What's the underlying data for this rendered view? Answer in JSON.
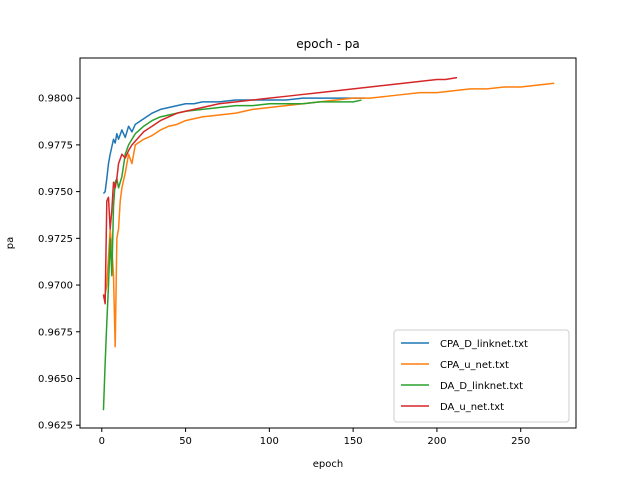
{
  "chart_data": {
    "type": "line",
    "title": "epoch - pa",
    "xlabel": "epoch",
    "ylabel": "pa",
    "xlim": [
      -13,
      283
    ],
    "ylim": [
      0.96235,
      0.98215
    ],
    "xticks": [
      0,
      50,
      100,
      150,
      200,
      250
    ],
    "yticks": [
      0.9625,
      0.965,
      0.9675,
      0.97,
      0.9725,
      0.975,
      0.9775,
      0.98
    ],
    "ytick_labels": [
      "0.9625",
      "0.9650",
      "0.9675",
      "0.9700",
      "0.9725",
      "0.9750",
      "0.9775",
      "0.9800"
    ],
    "grid": false,
    "legend_position": "lower-right",
    "series": [
      {
        "name": "CPA_D_linknet.txt",
        "color": "#1f77b4",
        "points": [
          [
            1,
            0.9749
          ],
          [
            2,
            0.975
          ],
          [
            3,
            0.9757
          ],
          [
            4,
            0.9765
          ],
          [
            5,
            0.977
          ],
          [
            6,
            0.9774
          ],
          [
            7,
            0.9778
          ],
          [
            8,
            0.9776
          ],
          [
            9,
            0.9781
          ],
          [
            10,
            0.9778
          ],
          [
            12,
            0.9783
          ],
          [
            14,
            0.9779
          ],
          [
            16,
            0.9785
          ],
          [
            18,
            0.9782
          ],
          [
            20,
            0.9786
          ],
          [
            25,
            0.9789
          ],
          [
            30,
            0.9792
          ],
          [
            35,
            0.9794
          ],
          [
            40,
            0.9795
          ],
          [
            45,
            0.9796
          ],
          [
            50,
            0.9797
          ],
          [
            55,
            0.9797
          ],
          [
            60,
            0.9798
          ],
          [
            70,
            0.9798
          ],
          [
            80,
            0.9799
          ],
          [
            90,
            0.9799
          ],
          [
            100,
            0.9799
          ],
          [
            110,
            0.9799
          ],
          [
            120,
            0.98
          ],
          [
            130,
            0.98
          ],
          [
            140,
            0.98
          ],
          [
            150,
            0.98
          ],
          [
            157,
            0.98
          ]
        ]
      },
      {
        "name": "CPA_u_net.txt",
        "color": "#ff7f0e",
        "points": [
          [
            1,
            0.9693
          ],
          [
            2,
            0.9695
          ],
          [
            3,
            0.97
          ],
          [
            4,
            0.9715
          ],
          [
            5,
            0.973
          ],
          [
            6,
            0.972
          ],
          [
            7,
            0.9705
          ],
          [
            8,
            0.9667
          ],
          [
            9,
            0.9725
          ],
          [
            10,
            0.973
          ],
          [
            11,
            0.9745
          ],
          [
            12,
            0.9752
          ],
          [
            14,
            0.976
          ],
          [
            16,
            0.977
          ],
          [
            18,
            0.9765
          ],
          [
            20,
            0.9775
          ],
          [
            25,
            0.9778
          ],
          [
            30,
            0.978
          ],
          [
            35,
            0.9783
          ],
          [
            40,
            0.9785
          ],
          [
            45,
            0.9786
          ],
          [
            50,
            0.9788
          ],
          [
            60,
            0.979
          ],
          [
            70,
            0.9791
          ],
          [
            80,
            0.9792
          ],
          [
            90,
            0.9794
          ],
          [
            100,
            0.9795
          ],
          [
            110,
            0.9796
          ],
          [
            120,
            0.9797
          ],
          [
            130,
            0.9798
          ],
          [
            140,
            0.9799
          ],
          [
            150,
            0.98
          ],
          [
            160,
            0.98
          ],
          [
            170,
            0.9801
          ],
          [
            180,
            0.9802
          ],
          [
            190,
            0.9803
          ],
          [
            200,
            0.9803
          ],
          [
            210,
            0.9804
          ],
          [
            220,
            0.9805
          ],
          [
            230,
            0.9805
          ],
          [
            240,
            0.9806
          ],
          [
            250,
            0.9806
          ],
          [
            260,
            0.9807
          ],
          [
            270,
            0.9808
          ]
        ]
      },
      {
        "name": "DA_D_linknet.txt",
        "color": "#2ca02c",
        "points": [
          [
            1,
            0.9633
          ],
          [
            2,
            0.9658
          ],
          [
            3,
            0.968
          ],
          [
            4,
            0.97
          ],
          [
            5,
            0.9725
          ],
          [
            6,
            0.9705
          ],
          [
            7,
            0.9742
          ],
          [
            8,
            0.9755
          ],
          [
            9,
            0.9757
          ],
          [
            10,
            0.9752
          ],
          [
            12,
            0.9758
          ],
          [
            14,
            0.977
          ],
          [
            16,
            0.9775
          ],
          [
            18,
            0.9778
          ],
          [
            20,
            0.9781
          ],
          [
            25,
            0.9785
          ],
          [
            30,
            0.9788
          ],
          [
            35,
            0.979
          ],
          [
            40,
            0.9791
          ],
          [
            45,
            0.9792
          ],
          [
            50,
            0.9793
          ],
          [
            60,
            0.9794
          ],
          [
            70,
            0.9795
          ],
          [
            80,
            0.9796
          ],
          [
            90,
            0.9796
          ],
          [
            100,
            0.9797
          ],
          [
            110,
            0.9797
          ],
          [
            120,
            0.9797
          ],
          [
            130,
            0.9798
          ],
          [
            140,
            0.9798
          ],
          [
            150,
            0.9798
          ],
          [
            155,
            0.9799
          ]
        ]
      },
      {
        "name": "DA_u_net.txt",
        "color": "#d62728",
        "points": [
          [
            1,
            0.9695
          ],
          [
            2,
            0.969
          ],
          [
            3,
            0.9745
          ],
          [
            4,
            0.9747
          ],
          [
            5,
            0.973
          ],
          [
            6,
            0.974
          ],
          [
            7,
            0.9755
          ],
          [
            8,
            0.9752
          ],
          [
            9,
            0.9757
          ],
          [
            10,
            0.9765
          ],
          [
            12,
            0.977
          ],
          [
            14,
            0.9768
          ],
          [
            16,
            0.9772
          ],
          [
            18,
            0.9775
          ],
          [
            20,
            0.9777
          ],
          [
            25,
            0.9782
          ],
          [
            30,
            0.9785
          ],
          [
            35,
            0.9788
          ],
          [
            40,
            0.979
          ],
          [
            45,
            0.9792
          ],
          [
            50,
            0.9793
          ],
          [
            60,
            0.9795
          ],
          [
            70,
            0.9797
          ],
          [
            80,
            0.9798
          ],
          [
            90,
            0.9799
          ],
          [
            100,
            0.98
          ],
          [
            110,
            0.9801
          ],
          [
            120,
            0.9802
          ],
          [
            130,
            0.9803
          ],
          [
            140,
            0.9804
          ],
          [
            150,
            0.9805
          ],
          [
            160,
            0.9806
          ],
          [
            170,
            0.9807
          ],
          [
            180,
            0.9808
          ],
          [
            190,
            0.9809
          ],
          [
            200,
            0.981
          ],
          [
            205,
            0.981
          ],
          [
            212,
            0.9811
          ]
        ]
      }
    ]
  }
}
